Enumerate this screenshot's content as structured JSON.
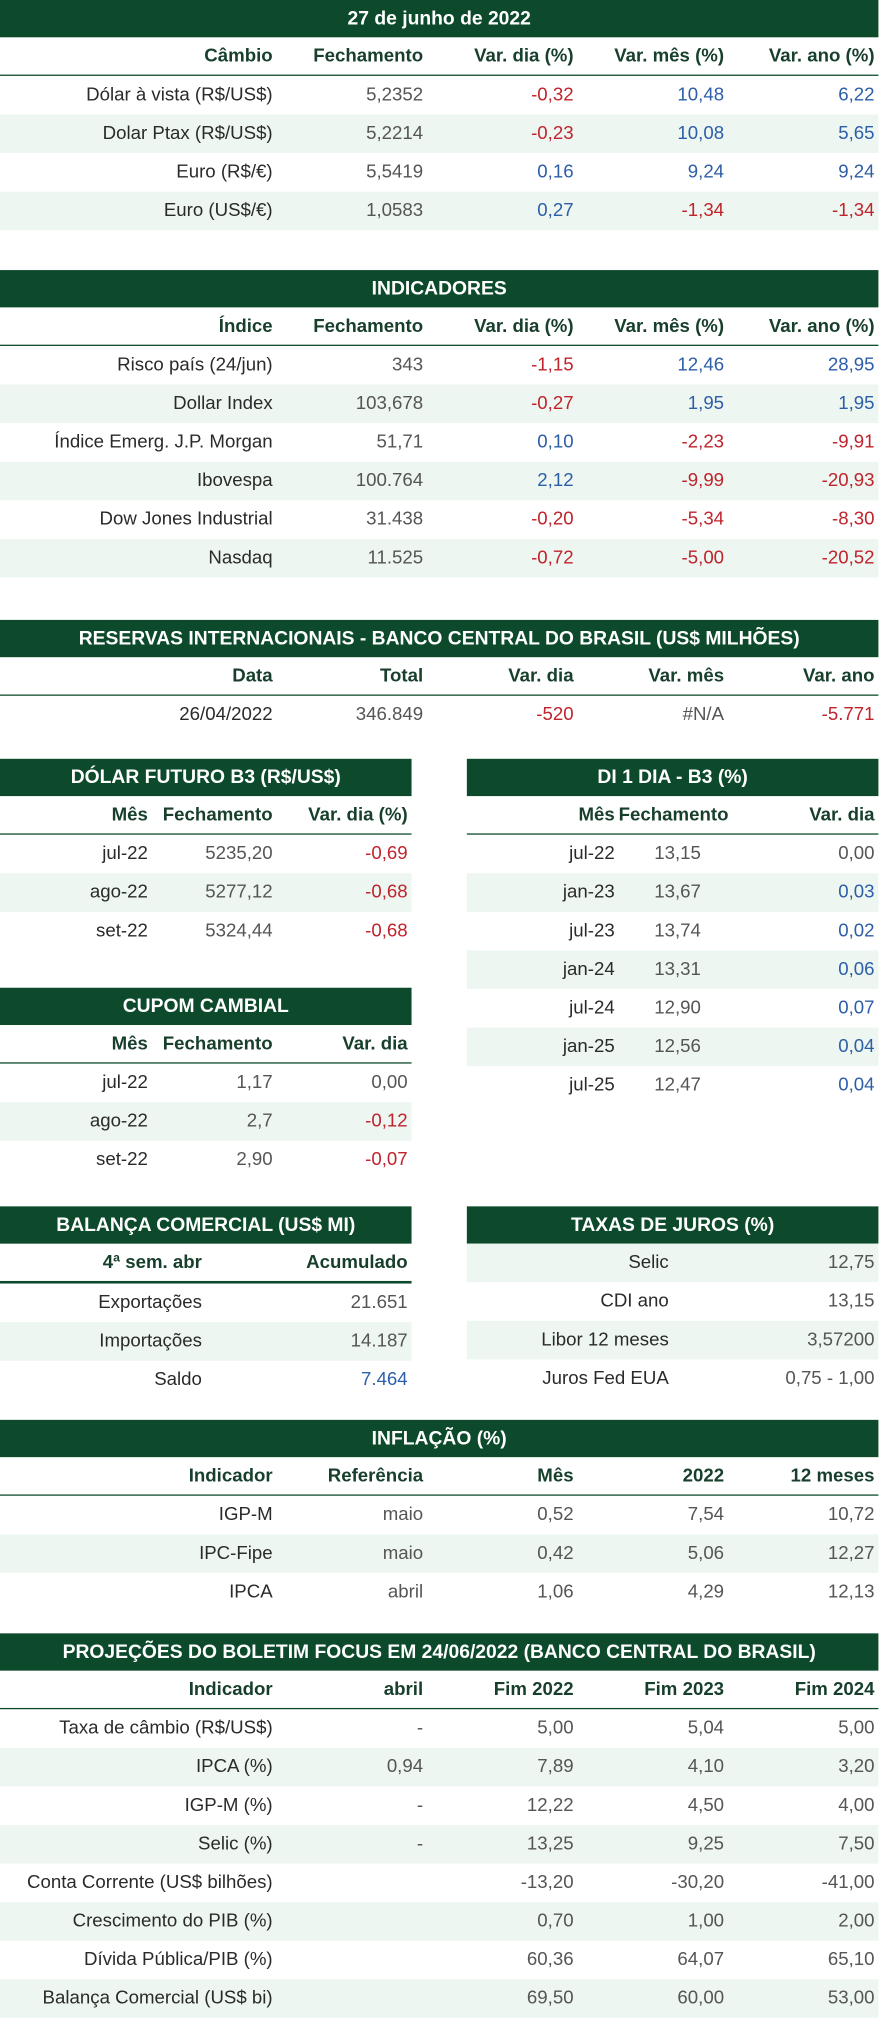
{
  "cambio": {
    "title": "27 de junho de 2022",
    "columns": [
      "Câmbio",
      "Fechamento",
      "Var. dia (%)",
      "Var. mês (%)",
      "Var. ano (%)"
    ],
    "rows": [
      [
        "Dólar à vista (R$/US$)",
        "5,2352",
        "-0,32",
        "10,48",
        "6,22"
      ],
      [
        "Dolar Ptax (R$/US$)",
        "5,2214",
        "-0,23",
        "10,08",
        "5,65"
      ],
      [
        "Euro (R$/€)",
        "5,5419",
        "0,16",
        "9,24",
        "9,24"
      ],
      [
        "Euro (US$/€)",
        "1,0583",
        "0,27",
        "-1,34",
        "-1,34"
      ]
    ]
  },
  "indicadores": {
    "title": "INDICADORES",
    "columns": [
      "Índice",
      "Fechamento",
      "Var. dia (%)",
      "Var. mês (%)",
      "Var. ano (%)"
    ],
    "rows": [
      [
        "Risco país (24/jun)",
        "343",
        "-1,15",
        "12,46",
        "28,95"
      ],
      [
        "Dollar Index",
        "103,678",
        "-0,27",
        "1,95",
        "1,95"
      ],
      [
        "Índice Emerg. J.P. Morgan",
        "51,71",
        "0,10",
        "-2,23",
        "-9,91"
      ],
      [
        "Ibovespa",
        "100.764",
        "2,12",
        "-9,99",
        "-20,93"
      ],
      [
        "Dow Jones Industrial",
        "31.438",
        "-0,20",
        "-5,34",
        "-8,30"
      ],
      [
        "Nasdaq",
        "11.525",
        "-0,72",
        "-5,00",
        "-20,52"
      ]
    ]
  },
  "reservas": {
    "title": "RESERVAS INTERNACIONAIS - BANCO CENTRAL DO BRASIL (US$ MILHÕES)",
    "columns": [
      "Data",
      "Total",
      "Var. dia",
      "Var. mês",
      "Var. ano"
    ],
    "rows": [
      [
        "26/04/2022",
        "346.849",
        "-520",
        "#N/A",
        "-5.771"
      ]
    ]
  },
  "dolar_futuro": {
    "title": "DÓLAR FUTURO B3 (R$/US$)",
    "columns": [
      "Mês",
      "Fechamento",
      "Var. dia (%)"
    ],
    "rows": [
      [
        "jul-22",
        "5235,20",
        "-0,69"
      ],
      [
        "ago-22",
        "5277,12",
        "-0,68"
      ],
      [
        "set-22",
        "5324,44",
        "-0,68"
      ]
    ]
  },
  "di_1_dia": {
    "title": "DI 1 DIA - B3 (%)",
    "columns": [
      "Mês",
      "Fechamento",
      "Var. dia"
    ],
    "rows": [
      [
        "jul-22",
        "13,15",
        "0,00"
      ],
      [
        "jan-23",
        "13,67",
        "0,03"
      ],
      [
        "jul-23",
        "13,74",
        "0,02"
      ],
      [
        "jan-24",
        "13,31",
        "0,06"
      ],
      [
        "jul-24",
        "12,90",
        "0,07"
      ],
      [
        "jan-25",
        "12,56",
        "0,04"
      ],
      [
        "jul-25",
        "12,47",
        "0,04"
      ]
    ]
  },
  "cupom_cambial": {
    "title": "CUPOM CAMBIAL",
    "columns": [
      "Mês",
      "Fechamento",
      "Var. dia"
    ],
    "rows": [
      [
        "jul-22",
        "1,17",
        "0,00"
      ],
      [
        "ago-22",
        "2,7",
        "-0,12"
      ],
      [
        "set-22",
        "2,90",
        "-0,07"
      ]
    ]
  },
  "balanca_comercial": {
    "title": "BALANÇA COMERCIAL (US$ MI)",
    "columns": [
      "4ª sem. abr",
      "Acumulado"
    ],
    "rows": [
      [
        "Exportações",
        "21.651"
      ],
      [
        "Importações",
        "14.187"
      ],
      [
        "Saldo",
        "7.464"
      ]
    ]
  },
  "taxas_de_juros": {
    "title": "TAXAS DE JUROS (%)",
    "rows": [
      [
        "Selic",
        "12,75"
      ],
      [
        "CDI ano",
        "13,15"
      ],
      [
        "Libor 12 meses",
        "3,57200"
      ],
      [
        "Juros Fed EUA",
        "0,75 - 1,00"
      ]
    ]
  },
  "inflacao": {
    "title": "INFLAÇÃO (%)",
    "columns": [
      "Indicador",
      "Referência",
      "Mês",
      "2022",
      "12 meses"
    ],
    "rows": [
      [
        "IGP-M",
        "maio",
        "0,52",
        "7,54",
        "10,72"
      ],
      [
        "IPC-Fipe",
        "maio",
        "0,42",
        "5,06",
        "12,27"
      ],
      [
        "IPCA",
        "abril",
        "1,06",
        "4,29",
        "12,13"
      ]
    ]
  },
  "focus": {
    "title": "PROJEÇÕES DO BOLETIM FOCUS EM 24/06/2022 (BANCO CENTRAL DO BRASIL)",
    "columns": [
      "Indicador",
      "abril",
      "Fim 2022",
      "Fim 2023",
      "Fim 2024"
    ],
    "rows": [
      [
        "Taxa de câmbio (R$/US$)",
        "-",
        "5,00",
        "5,04",
        "5,00"
      ],
      [
        "IPCA (%)",
        "0,94",
        "7,89",
        "4,10",
        "3,20"
      ],
      [
        "IGP-M (%)",
        "-",
        "12,22",
        "4,50",
        "4,00"
      ],
      [
        "Selic (%)",
        "-",
        "13,25",
        "9,25",
        "7,50"
      ],
      [
        "Conta Corrente (US$ bilhões)",
        "",
        "-13,20",
        "-30,20",
        "-41,00"
      ],
      [
        "Crescimento do PIB (%)",
        "",
        "0,70",
        "1,00",
        "2,00"
      ],
      [
        "Dívida Pública/PIB (%)",
        "",
        "60,36",
        "64,07",
        "65,10"
      ],
      [
        "Balança Comercial (US$ bi)",
        "",
        "69,50",
        "60,00",
        "53,00"
      ]
    ]
  }
}
